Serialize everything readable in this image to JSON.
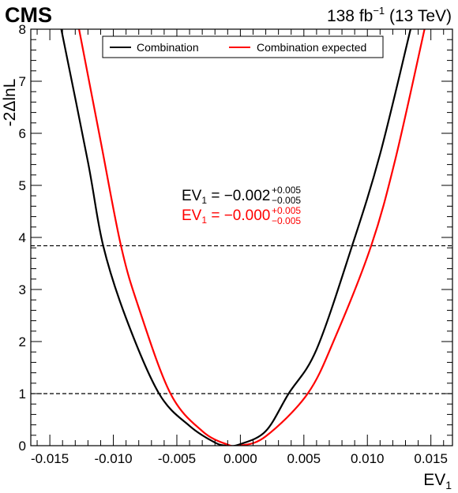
{
  "header": {
    "experiment": "CMS",
    "lumi_value": "138 fb",
    "lumi_exp": "−1",
    "energy": " (13 TeV)"
  },
  "chart_data": {
    "type": "line",
    "xlabel": "EV",
    "xlabel_sub": "1",
    "ylabel": "-2ΔlnL",
    "xlim": [
      -0.0165,
      0.0167
    ],
    "ylim": [
      0,
      8
    ],
    "xticks": [
      -0.015,
      -0.01,
      -0.005,
      0.0,
      0.005,
      0.01,
      0.015
    ],
    "xtick_labels": [
      "-0.015",
      "-0.010",
      "-0.005",
      "0.000",
      "0.005",
      "0.010",
      "0.015"
    ],
    "yticks": [
      0,
      1,
      2,
      3,
      4,
      5,
      6,
      7,
      8
    ],
    "ytick_labels": [
      "0",
      "1",
      "2",
      "3",
      "4",
      "5",
      "6",
      "7",
      "8"
    ],
    "reference_lines": [
      1.0,
      3.84
    ],
    "series": [
      {
        "name": "Combination",
        "color": "#000000",
        "x": [
          -0.0141,
          -0.012,
          -0.0108,
          -0.009,
          -0.0064,
          -0.004,
          -0.002,
          -0.001,
          0.0,
          0.002,
          0.0038,
          0.006,
          0.0088,
          0.011,
          0.0134
        ],
        "y": [
          8.0,
          5.45,
          3.84,
          2.45,
          1.0,
          0.38,
          0.06,
          0.0,
          0.03,
          0.28,
          1.0,
          1.85,
          3.84,
          5.6,
          8.0
        ]
      },
      {
        "name": "Combination expected",
        "color": "#ff0000",
        "x": [
          -0.0127,
          -0.011,
          -0.0094,
          -0.008,
          -0.0055,
          -0.003,
          -0.001,
          0.0,
          0.002,
          0.0053,
          0.0075,
          0.0103,
          0.0122,
          0.0145
        ],
        "y": [
          8.0,
          5.85,
          3.84,
          2.65,
          1.0,
          0.28,
          0.02,
          0.0,
          0.18,
          1.0,
          2.1,
          3.84,
          5.5,
          8.0
        ]
      }
    ],
    "legend": {
      "placement": "top-center",
      "entries": [
        "Combination",
        "Combination expected"
      ]
    },
    "annotations": [
      {
        "color": "#000000",
        "label": "EV",
        "sub": "1",
        "eq": " = −0.002",
        "up": "+0.005",
        "down": "−0.005"
      },
      {
        "color": "#ff0000",
        "label": "EV",
        "sub": "1",
        "eq": " = −0.000",
        "up": "+0.005",
        "down": "−0.005"
      }
    ],
    "grid": false
  }
}
